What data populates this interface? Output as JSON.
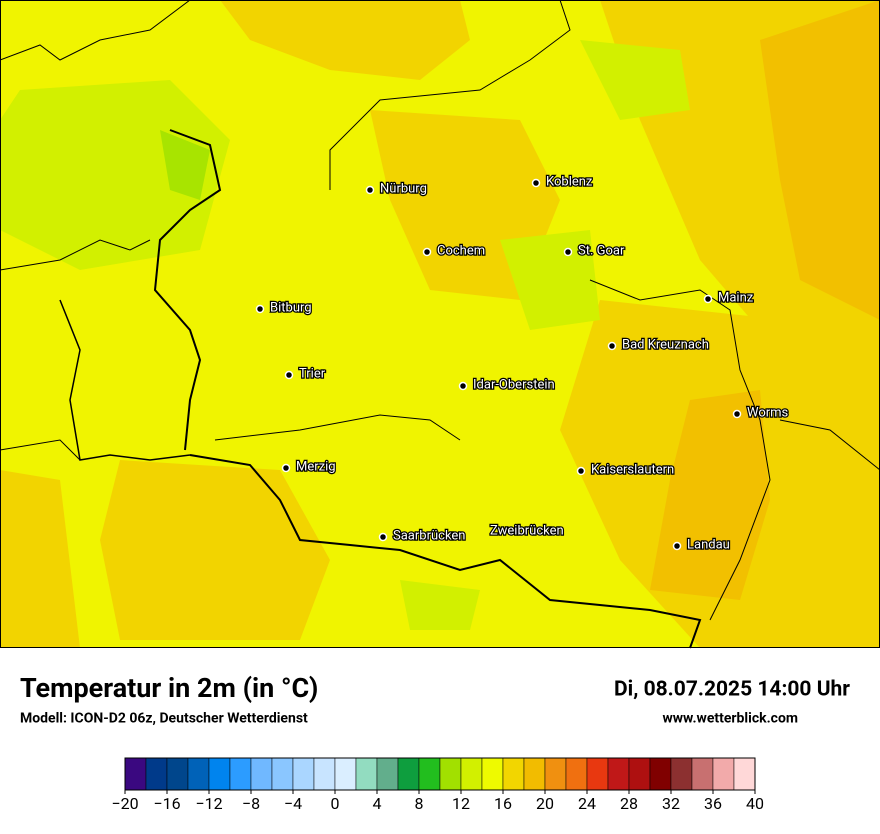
{
  "map": {
    "cities": [
      "Nürburg",
      "Koblenz",
      "Cochem",
      "St. Goar",
      "Mainz",
      "Bitburg",
      "Bad Kreuznach",
      "Trier",
      "Idar-Oberstein",
      "Worms",
      "Merzig",
      "Kaiserslautern",
      "Saarbrücken",
      "Zweibrücken",
      "Landau"
    ]
  },
  "header": {
    "title": "Temperatur in 2m (in °C)",
    "subtitle": "Modell: ICON-D2 06z, Deutscher Wetterdienst",
    "date": "Di, 08.07.2025 14:00 Uhr",
    "website": "www.wetterblick.com"
  },
  "legend": {
    "bins": [
      -20,
      -18,
      -16,
      -14,
      -12,
      -10,
      -8,
      -6,
      -4,
      -2,
      0,
      2,
      4,
      6,
      8,
      10,
      12,
      14,
      16,
      18,
      20,
      22,
      24,
      26,
      28,
      30,
      32,
      34,
      36,
      38,
      40
    ],
    "colors": [
      "#3a0880",
      "#003a8a",
      "#00468c",
      "#0062b8",
      "#0084ee",
      "#2c9cff",
      "#70b8ff",
      "#8ac6ff",
      "#aad6ff",
      "#c8e4ff",
      "#daeeff",
      "#92dcc0",
      "#62ae8c",
      "#0e9e3e",
      "#22be1e",
      "#a2e000",
      "#d2f000",
      "#eefa00",
      "#f2d600",
      "#f2bc00",
      "#f09010",
      "#f07010",
      "#e83810",
      "#c01818",
      "#ae1010",
      "#800000",
      "#8c3030",
      "#c87070",
      "#f2aaaa",
      "#ffd8d8"
    ],
    "ticks": [
      {
        "value": -20,
        "label": "−20"
      },
      {
        "value": -16,
        "label": "−16"
      },
      {
        "value": -12,
        "label": "−12"
      },
      {
        "value": -8,
        "label": "−8"
      },
      {
        "value": -4,
        "label": "−4"
      },
      0,
      4,
      8,
      12,
      16,
      20,
      24,
      28,
      32,
      36,
      40
    ]
  }
}
